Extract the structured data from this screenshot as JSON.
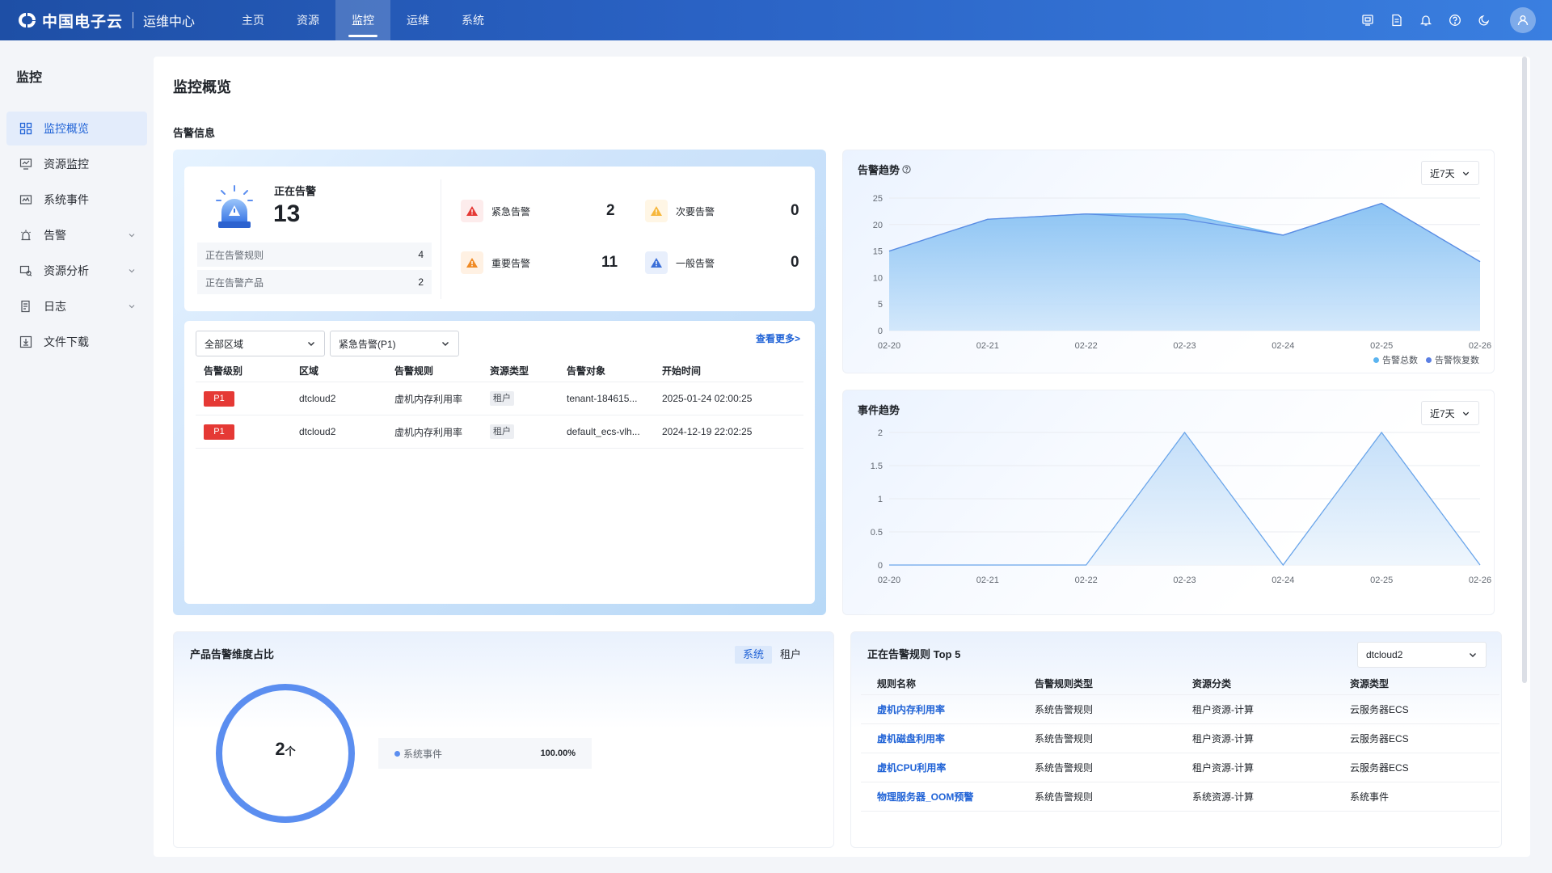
{
  "header": {
    "brand": "中国电子云",
    "subtitle": "运维中心",
    "nav": [
      {
        "label": "主页",
        "active": false
      },
      {
        "label": "资源",
        "active": false
      },
      {
        "label": "监控",
        "active": true
      },
      {
        "label": "运维",
        "active": false
      },
      {
        "label": "系统",
        "active": false
      }
    ],
    "icons": [
      "screen-icon",
      "document-icon",
      "bell-icon",
      "help-icon",
      "moon-icon",
      "user-icon"
    ]
  },
  "sidebar": {
    "title": "监控",
    "items": [
      {
        "label": "监控概览",
        "icon": "grid-icon",
        "active": true,
        "expandable": false
      },
      {
        "label": "资源监控",
        "icon": "monitor-icon",
        "active": false,
        "expandable": false
      },
      {
        "label": "系统事件",
        "icon": "event-icon",
        "active": false,
        "expandable": false
      },
      {
        "label": "告警",
        "icon": "alarm-icon",
        "active": false,
        "expandable": true
      },
      {
        "label": "资源分析",
        "icon": "analysis-icon",
        "active": false,
        "expandable": true
      },
      {
        "label": "日志",
        "icon": "log-icon",
        "active": false,
        "expandable": true
      },
      {
        "label": "文件下载",
        "icon": "download-icon",
        "active": false,
        "expandable": false
      }
    ]
  },
  "page": {
    "title": "监控概览",
    "section_alarm": "告警信息"
  },
  "alarm": {
    "active_label": "正在告警",
    "active_count": "13",
    "rules_label": "正在告警规则",
    "rules_count": "4",
    "products_label": "正在告警产品",
    "products_count": "2",
    "levels": [
      {
        "label": "紧急告警",
        "count": "2",
        "color": "#e53935",
        "bg": "#fdecec"
      },
      {
        "label": "次要告警",
        "count": "0",
        "color": "#f6b73c",
        "bg": "#fff6e5"
      },
      {
        "label": "重要告警",
        "count": "11",
        "color": "#f08a24",
        "bg": "#fff1e3"
      },
      {
        "label": "一般告警",
        "count": "0",
        "color": "#3b6fd8",
        "bg": "#e8effc"
      }
    ],
    "filter_region": "全部区域",
    "filter_level": "紧急告警(P1)",
    "more_link": "查看更多>",
    "columns": [
      "告警级别",
      "区域",
      "告警规则",
      "资源类型",
      "告警对象",
      "开始时间"
    ],
    "rows": [
      {
        "level": "P1",
        "region": "dtcloud2",
        "rule": "虚机内存利用率",
        "type": "租户",
        "target": "tenant-184615...",
        "time": "2025-01-24 02:00:25"
      },
      {
        "level": "P1",
        "region": "dtcloud2",
        "rule": "虚机内存利用率",
        "type": "租户",
        "target": "default_ecs-vlh...",
        "time": "2024-12-19 22:02:25"
      }
    ]
  },
  "trend_alarm": {
    "title": "告警趋势",
    "range": "近7天",
    "legend": [
      "告警总数",
      "告警恢复数"
    ],
    "colors": {
      "total": "#6cb7f2",
      "recovered": "#5b8be3"
    }
  },
  "trend_event": {
    "title": "事件趋势",
    "range": "近7天"
  },
  "chart_data": [
    {
      "type": "area",
      "title": "告警趋势",
      "x": [
        "02-20",
        "02-21",
        "02-22",
        "02-23",
        "02-24",
        "02-25",
        "02-26"
      ],
      "y_ticks": [
        "0",
        "5",
        "10",
        "15",
        "20",
        "25"
      ],
      "ylim": [
        0,
        25
      ],
      "grid": true,
      "legend_position": "bottom-right",
      "series": [
        {
          "name": "告警总数",
          "values": [
            15,
            21,
            22,
            22,
            18,
            24,
            13
          ]
        },
        {
          "name": "告警恢复数",
          "values": [
            15,
            21,
            22,
            21,
            18,
            24,
            13
          ]
        }
      ]
    },
    {
      "type": "area",
      "title": "事件趋势",
      "x": [
        "02-20",
        "02-21",
        "02-22",
        "02-23",
        "02-24",
        "02-25",
        "02-26"
      ],
      "y_ticks": [
        "0",
        "0.5",
        "1",
        "1.5",
        "2"
      ],
      "ylim": [
        0,
        2
      ],
      "grid": true,
      "series": [
        {
          "values": [
            0,
            0,
            0,
            2,
            0,
            2,
            0
          ]
        }
      ]
    }
  ],
  "product_ratio": {
    "title": "产品告警维度占比",
    "tabs": [
      {
        "label": "系统",
        "active": true
      },
      {
        "label": "租户",
        "active": false
      }
    ],
    "center_value": "2",
    "center_unit": "个",
    "legend_label": "系统事件",
    "legend_value": "100.00%",
    "ring_color": "#5b8ef0"
  },
  "top_rules": {
    "title": "正在告警规则 Top 5",
    "region": "dtcloud2",
    "columns": [
      "规则名称",
      "告警规则类型",
      "资源分类",
      "资源类型"
    ],
    "rows": [
      {
        "name": "虚机内存利用率",
        "rule_type": "系统告警规则",
        "category": "租户资源-计算",
        "res_type": "云服务器ECS"
      },
      {
        "name": "虚机磁盘利用率",
        "rule_type": "系统告警规则",
        "category": "租户资源-计算",
        "res_type": "云服务器ECS"
      },
      {
        "name": "虚机CPU利用率",
        "rule_type": "系统告警规则",
        "category": "租户资源-计算",
        "res_type": "云服务器ECS"
      },
      {
        "name": "物理服务器_OOM预警",
        "rule_type": "系统告警规则",
        "category": "系统资源-计算",
        "res_type": "系统事件"
      }
    ]
  }
}
